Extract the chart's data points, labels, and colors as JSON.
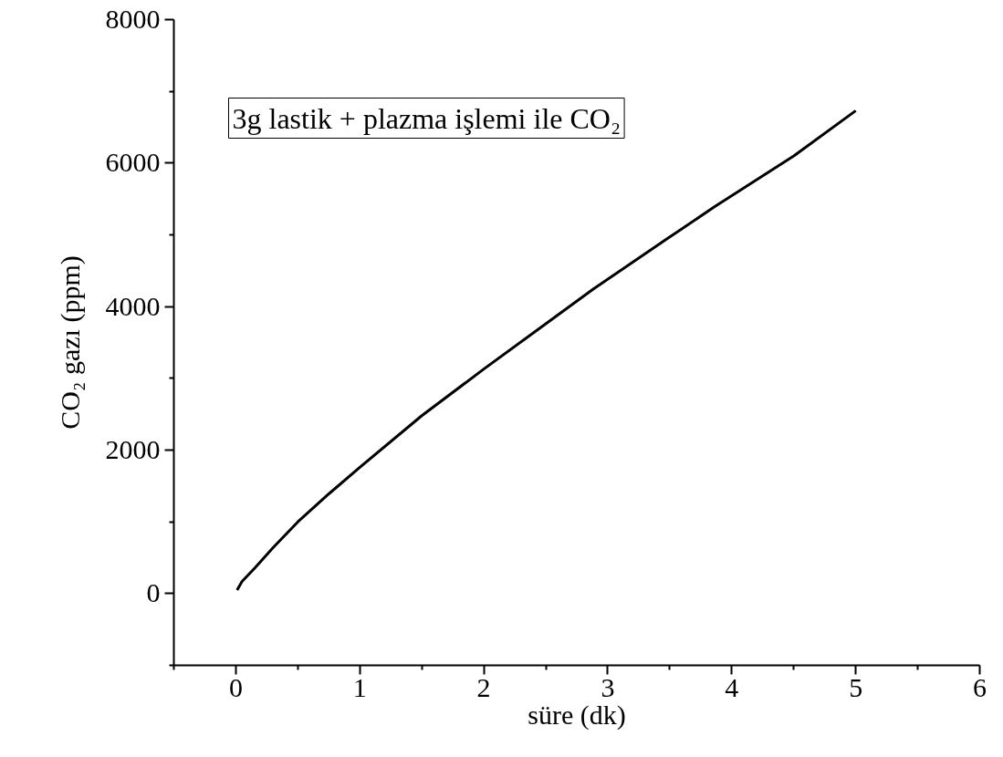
{
  "chart_data": {
    "type": "line",
    "xlabel": "süre (dk)",
    "ylabel": "CO₂ gazı (ppm)",
    "annotations": [
      "3g lastik + plazma işlemi ile CO₂"
    ],
    "x": [
      0.01,
      0.05,
      0.155,
      0.3,
      0.5,
      0.75,
      1,
      1.5,
      2,
      2.5,
      2.88,
      3.5,
      3.86,
      4.5,
      5
    ],
    "series": [
      {
        "color": "#000000",
        "values": [
          50,
          170,
          360,
          640,
          1000,
          1390,
          1760,
          2480,
          3130,
          3760,
          4240,
          4970,
          5390,
          6100,
          6730
        ]
      }
    ],
    "xlim": [
      -0.5,
      6
    ],
    "xticks": [
      0,
      1,
      2,
      3,
      4,
      5,
      6
    ],
    "ylim": [
      -1000,
      8000
    ],
    "yticks": [
      0,
      2000,
      4000,
      6000,
      8000
    ],
    "grid": false,
    "marker": "none",
    "line_style": "solid"
  }
}
